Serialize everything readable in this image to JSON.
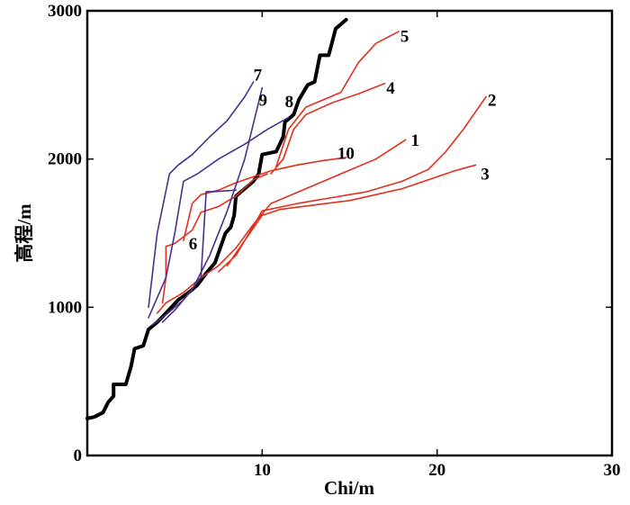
{
  "chart_data": {
    "type": "line",
    "xlabel": "Chi/m",
    "ylabel": "高程/m",
    "xlim": [
      0,
      30
    ],
    "ylim": [
      0,
      3000
    ],
    "x_ticks": [
      0,
      10,
      20,
      30
    ],
    "y_ticks": [
      0,
      1000,
      2000,
      3000
    ],
    "x_tick_labels": [
      "",
      "10",
      "20",
      "30"
    ],
    "y_tick_labels": [
      "0",
      "1000",
      "2000",
      "3000"
    ],
    "colors": {
      "main": "#000000",
      "red": "#e0301e",
      "purple": "#4a2f8a"
    },
    "series": [
      {
        "name": "main",
        "color": "#000000",
        "width": 4,
        "points": [
          [
            0,
            250
          ],
          [
            0.4,
            260
          ],
          [
            0.9,
            290
          ],
          [
            1.2,
            360
          ],
          [
            1.5,
            400
          ],
          [
            1.5,
            480
          ],
          [
            2.2,
            480
          ],
          [
            2.5,
            600
          ],
          [
            2.7,
            720
          ],
          [
            3.2,
            740
          ],
          [
            3.5,
            850
          ],
          [
            4.0,
            900
          ],
          [
            4.5,
            960
          ],
          [
            5.2,
            1050
          ],
          [
            5.8,
            1100
          ],
          [
            6.3,
            1150
          ],
          [
            6.8,
            1230
          ],
          [
            7.3,
            1300
          ],
          [
            7.6,
            1400
          ],
          [
            7.9,
            1500
          ],
          [
            8.2,
            1540
          ],
          [
            8.4,
            1620
          ],
          [
            8.5,
            1750
          ],
          [
            9.0,
            1800
          ],
          [
            9.5,
            1850
          ],
          [
            9.8,
            1900
          ],
          [
            10.0,
            2030
          ],
          [
            10.8,
            2050
          ],
          [
            11.2,
            2150
          ],
          [
            11.3,
            2250
          ],
          [
            11.8,
            2300
          ],
          [
            12.1,
            2400
          ],
          [
            12.6,
            2500
          ],
          [
            13.0,
            2520
          ],
          [
            13.3,
            2700
          ],
          [
            13.8,
            2700
          ],
          [
            14.2,
            2880
          ],
          [
            14.8,
            2940
          ]
        ]
      },
      {
        "name": "1",
        "color": "#e0301e",
        "width": 1.6,
        "points": [
          [
            4.0,
            960
          ],
          [
            4.5,
            1030
          ],
          [
            5.5,
            1100
          ],
          [
            6.5,
            1200
          ],
          [
            7.5,
            1280
          ],
          [
            8.5,
            1400
          ],
          [
            9.5,
            1560
          ],
          [
            10.5,
            1700
          ],
          [
            12.5,
            1800
          ],
          [
            14.5,
            1900
          ],
          [
            16.5,
            2000
          ],
          [
            18.2,
            2130
          ]
        ]
      },
      {
        "name": "2",
        "color": "#e0301e",
        "width": 1.6,
        "points": [
          [
            7.5,
            1240
          ],
          [
            8.5,
            1350
          ],
          [
            9.5,
            1550
          ],
          [
            10.0,
            1650
          ],
          [
            12.0,
            1700
          ],
          [
            14.0,
            1740
          ],
          [
            16.0,
            1780
          ],
          [
            18.0,
            1850
          ],
          [
            19.5,
            1930
          ],
          [
            20.5,
            2050
          ],
          [
            21.5,
            2200
          ],
          [
            22.8,
            2420
          ]
        ]
      },
      {
        "name": "3",
        "color": "#e0301e",
        "width": 1.6,
        "points": [
          [
            8.0,
            1280
          ],
          [
            9.0,
            1450
          ],
          [
            10.0,
            1620
          ],
          [
            11.0,
            1660
          ],
          [
            13.0,
            1690
          ],
          [
            15.0,
            1720
          ],
          [
            16.5,
            1760
          ],
          [
            18.0,
            1800
          ],
          [
            19.5,
            1860
          ],
          [
            21.0,
            1920
          ],
          [
            22.2,
            1960
          ]
        ]
      },
      {
        "name": "4",
        "color": "#e0301e",
        "width": 1.6,
        "points": [
          [
            10.5,
            1900
          ],
          [
            11.2,
            2000
          ],
          [
            11.8,
            2200
          ],
          [
            12.5,
            2300
          ],
          [
            14.0,
            2380
          ],
          [
            15.5,
            2440
          ],
          [
            17.0,
            2510
          ]
        ]
      },
      {
        "name": "5",
        "color": "#e0301e",
        "width": 1.6,
        "points": [
          [
            10.8,
            1950
          ],
          [
            11.5,
            2200
          ],
          [
            12.5,
            2350
          ],
          [
            14.5,
            2450
          ],
          [
            15.5,
            2650
          ],
          [
            16.5,
            2780
          ],
          [
            17.8,
            2860
          ]
        ]
      },
      {
        "name": "6",
        "color": "#e0301e",
        "width": 1.6,
        "points": [
          [
            4.3,
            1030
          ],
          [
            4.5,
            1200
          ],
          [
            4.5,
            1410
          ],
          [
            5.0,
            1430
          ],
          [
            6.0,
            1520
          ],
          [
            6.5,
            1640
          ],
          [
            7.5,
            1680
          ],
          [
            8.5,
            1750
          ],
          [
            9.5,
            1860
          ],
          [
            10.3,
            1900
          ]
        ]
      },
      {
        "name": "10",
        "color": "#e0301e",
        "width": 1.6,
        "points": [
          [
            5.5,
            1450
          ],
          [
            6.0,
            1700
          ],
          [
            6.5,
            1760
          ],
          [
            7.5,
            1790
          ],
          [
            8.5,
            1840
          ],
          [
            9.5,
            1880
          ],
          [
            10.5,
            1920
          ],
          [
            12.0,
            1960
          ],
          [
            13.5,
            1990
          ],
          [
            14.8,
            2010
          ]
        ]
      },
      {
        "name": "7",
        "color": "#4a2f8a",
        "width": 1.6,
        "points": [
          [
            3.5,
            1000
          ],
          [
            4.0,
            1500
          ],
          [
            4.7,
            1900
          ],
          [
            5.2,
            1960
          ],
          [
            6.0,
            2030
          ],
          [
            7.0,
            2150
          ],
          [
            8.0,
            2260
          ],
          [
            9.0,
            2420
          ],
          [
            9.5,
            2520
          ]
        ]
      },
      {
        "name": "9",
        "color": "#4a2f8a",
        "width": 1.6,
        "points": [
          [
            3.5,
            930
          ],
          [
            4.5,
            1200
          ],
          [
            5.0,
            1500
          ],
          [
            5.5,
            1850
          ],
          [
            6.3,
            1900
          ],
          [
            7.5,
            2000
          ],
          [
            9.0,
            2100
          ],
          [
            10.3,
            2200
          ],
          [
            11.5,
            2280
          ]
        ]
      },
      {
        "name": "8",
        "color": "#4a2f8a",
        "width": 1.6,
        "points": [
          [
            4.3,
            900
          ],
          [
            5.0,
            980
          ],
          [
            6.0,
            1120
          ],
          [
            7.0,
            1350
          ],
          [
            8.0,
            1650
          ],
          [
            9.0,
            2000
          ],
          [
            10.0,
            2480
          ]
        ]
      },
      {
        "name": "extra",
        "color": "#4a2f8a",
        "width": 1.6,
        "points": [
          [
            3.7,
            880
          ],
          [
            4.5,
            950
          ],
          [
            5.5,
            1050
          ],
          [
            6.5,
            1200
          ],
          [
            6.8,
            1780
          ],
          [
            7.2,
            1780
          ],
          [
            8.5,
            1790
          ]
        ]
      }
    ],
    "labels": [
      {
        "text": "1",
        "x": 18.5,
        "y": 2090
      },
      {
        "text": "2",
        "x": 22.9,
        "y": 2360
      },
      {
        "text": "3",
        "x": 22.5,
        "y": 1860
      },
      {
        "text": "4",
        "x": 17.1,
        "y": 2440
      },
      {
        "text": "5",
        "x": 17.9,
        "y": 2790
      },
      {
        "text": "6",
        "x": 5.8,
        "y": 1390
      },
      {
        "text": "7",
        "x": 9.5,
        "y": 2530
      },
      {
        "text": "8",
        "x": 11.3,
        "y": 2350
      },
      {
        "text": "9",
        "x": 9.8,
        "y": 2360
      },
      {
        "text": "10",
        "x": 14.3,
        "y": 2000
      }
    ]
  }
}
